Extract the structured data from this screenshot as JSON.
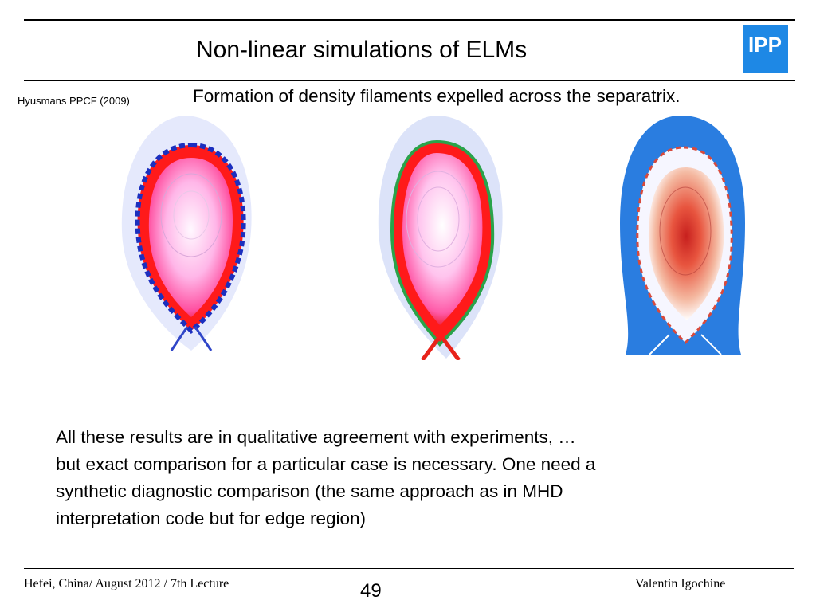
{
  "header": {
    "title": "Non-linear simulations of ELMs",
    "logo_text": "IPP",
    "logo_color": "#1e88e5"
  },
  "citation": "Hyusmans PPCF (2009)",
  "subtitle": "Formation of density filaments expelled across the separatrix.",
  "figures": [
    {
      "name": "simulation-1",
      "colormap": "pink-red"
    },
    {
      "name": "simulation-2",
      "colormap": "pink-red"
    },
    {
      "name": "simulation-3",
      "colormap": "blue-white-red"
    }
  ],
  "body": {
    "lines": [
      "All these results are in qualitative agreement with experiments, …",
      "but exact comparison for a particular case is necessary. One need a",
      "synthetic diagnostic comparison (the same approach as in MHD",
      "interpretation code but for edge region)"
    ]
  },
  "footer": {
    "left": "Hefei, China/ August 2012 / 7th Lecture",
    "page_number": "49",
    "right": "Valentin Igochine"
  }
}
